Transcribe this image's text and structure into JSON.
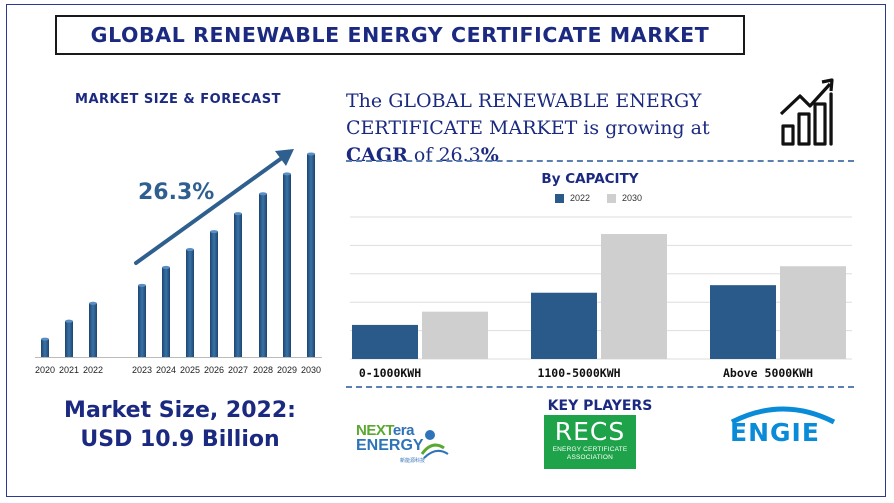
{
  "title": "GLOBAL RENEWABLE ENERGY CERTIFICATE MARKET",
  "left_panel": {
    "subtitle": "MARKET SIZE & FORECAST",
    "cagr_label": "26.3%",
    "market_size_line1": "Market Size, 2022:",
    "market_size_line2": "USD 10.9 Billion"
  },
  "headline": {
    "line1": "The GLOBAL RENEWABLE ENERGY",
    "line2": "CERTIFICATE MARKET is growing at",
    "cagr_word": "CAGR",
    "of_word": " of ",
    "cagr_value": "26.3",
    "percent": "%"
  },
  "key_players": {
    "title": "KEY PLAYERS",
    "nextera_part1": "NEXT",
    "nextera_part2": "era",
    "nextera_line2": "ENERGY",
    "nextera_tagline": "新能源科技",
    "recs_name": "RECS",
    "recs_line1": "ENERGY CERTIFICATE",
    "recs_line2": "ASSOCIATION",
    "engie_name": "ENGIE"
  },
  "colors": {
    "navy": "#1b2a80",
    "bar_blue": "#2a5a8a",
    "bar_grey": "#cfcfcf",
    "arrow": "#2f5f8f"
  },
  "icons": [
    "growth-chart-icon"
  ],
  "chart_data": [
    {
      "type": "bar",
      "title": "MARKET SIZE & FORECAST",
      "categories": [
        "2020",
        "2021",
        "2022",
        "2023",
        "2024",
        "2025",
        "2026",
        "2027",
        "2028",
        "2029",
        "2030"
      ],
      "values": [
        9,
        18,
        27,
        36,
        45,
        54,
        63,
        72,
        82,
        92,
        102
      ],
      "annotation": "26.3%",
      "ylim": [
        0,
        105
      ]
    },
    {
      "type": "bar",
      "title": "By CAPACITY",
      "categories": [
        "0-1000KWH",
        "1100-5000KWH",
        "Above 5000KWH"
      ],
      "series": [
        {
          "name": "2022",
          "values": [
            36,
            70,
            78
          ]
        },
        {
          "name": "2030",
          "values": [
            50,
            132,
            98
          ]
        }
      ],
      "ylim": [
        0,
        150
      ],
      "grid": true,
      "legend": "top-center"
    }
  ]
}
